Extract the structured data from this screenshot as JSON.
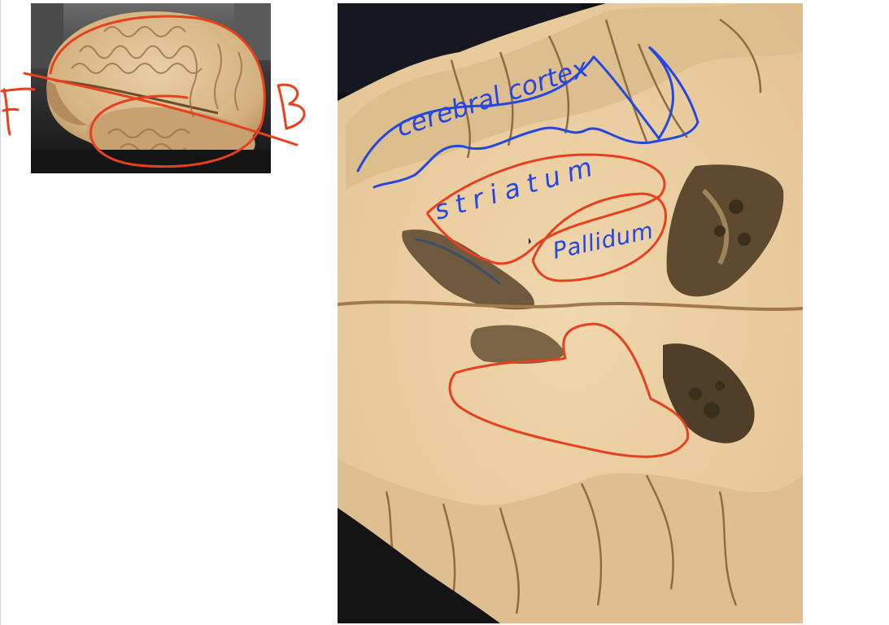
{
  "thumbnail": {
    "left_label": "F",
    "right_label": "B",
    "ink_color": "#e8401c"
  },
  "annotations": {
    "cortex_label": "cerebral cortex",
    "striatum_label": "striatum",
    "pallidum_label": "Pallidum",
    "blue_ink": "#2347e0",
    "red_ink": "#e8401c"
  }
}
